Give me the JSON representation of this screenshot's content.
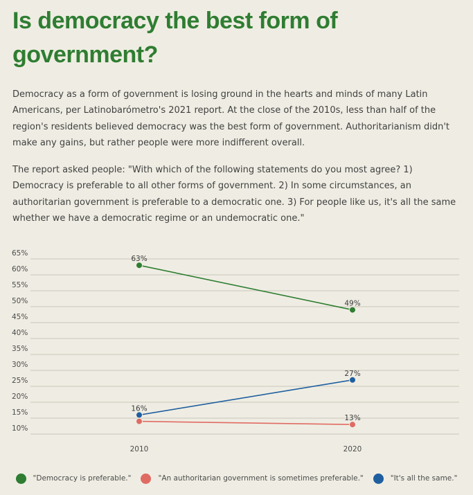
{
  "article": {
    "title": "Is democracy the best form of government?",
    "paragraph1": "Democracy as a form of government is losing ground in the hearts and minds of many Latin Americans, per Latinobarómetro's 2021 report. At the close of the 2010s, less than half of the region's residents believed democracy was the best form of government. Authoritarianism didn't make any gains, but rather people were more indifferent overall.",
    "paragraph2": "The report asked people: \"With which of the following statements do you most agree? 1) Democracy is preferable to all other forms of government. 2) In some circumstances, an authoritarian government is preferable to a democratic one. 3) For people like us, it's all the same whether we have a democratic regime or an undemocratic one.\""
  },
  "chart_data": {
    "type": "line",
    "x": [
      "2010",
      "2020"
    ],
    "y_ticks": [
      "65%",
      "60%",
      "55%",
      "50%",
      "45%",
      "40%",
      "35%",
      "30%",
      "25%",
      "20%",
      "15%",
      "10%"
    ],
    "ylim": [
      10,
      65
    ],
    "grid": true,
    "legend_position": "bottom",
    "series": [
      {
        "name": "\"Democracy is preferable.\"",
        "values": [
          63,
          49
        ],
        "labels": [
          "63%",
          "49%"
        ],
        "color": "#2e7d32"
      },
      {
        "name": "\"An authoritarian government is sometimes preferable.\"",
        "values": [
          14,
          13
        ],
        "labels": [
          "",
          "13%"
        ],
        "color": "#e06b63"
      },
      {
        "name": "\"It's all the same.\"",
        "values": [
          16,
          27
        ],
        "labels": [
          "16%",
          "27%"
        ],
        "color": "#1f5fa0"
      }
    ]
  }
}
